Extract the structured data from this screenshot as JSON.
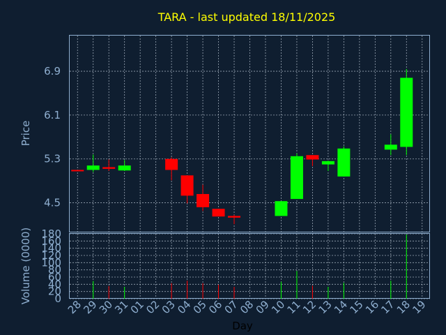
{
  "chart_data": {
    "type": "candlestick",
    "title": "TARA - last updated 18/11/2025",
    "xlabel": "Day",
    "price_panel": {
      "ylabel": "Price",
      "yticks": [
        "4.5",
        "5.3",
        "6.1",
        "6.9"
      ],
      "ylim": [
        3.96,
        7.55
      ],
      "grid": true
    },
    "volume_panel": {
      "ylabel": "Volume (0000)",
      "yticks": [
        "0",
        "20",
        "40",
        "60",
        "80",
        "100",
        "120",
        "140",
        "160",
        "180"
      ],
      "ylim": [
        0,
        180
      ],
      "grid": true
    },
    "x_tick_labels": [
      "28",
      "29",
      "30",
      "31",
      "01",
      "02",
      "03",
      "04",
      "05",
      "06",
      "07",
      "08",
      "09",
      "10",
      "11",
      "12",
      "13",
      "14",
      "15",
      "16",
      "17",
      "18",
      "19"
    ],
    "candles": [
      {
        "day": "28",
        "open": 5.1,
        "high": 5.1,
        "low": 5.1,
        "close": 5.09,
        "volume": 0
      },
      {
        "day": "29",
        "open": 5.1,
        "high": 5.38,
        "low": 5.06,
        "close": 5.18,
        "volume": 49
      },
      {
        "day": "30",
        "open": 5.15,
        "high": 5.29,
        "low": 5.08,
        "close": 5.12,
        "volume": 35
      },
      {
        "day": "31",
        "open": 5.09,
        "high": 5.28,
        "low": 5.08,
        "close": 5.18,
        "volume": 33
      },
      {
        "day": "03",
        "open": 5.3,
        "high": 5.33,
        "low": 4.91,
        "close": 5.1,
        "volume": 43
      },
      {
        "day": "04",
        "open": 5.0,
        "high": 5.0,
        "low": 4.49,
        "close": 4.63,
        "volume": 50
      },
      {
        "day": "05",
        "open": 4.66,
        "high": 4.83,
        "low": 4.35,
        "close": 4.42,
        "volume": 43
      },
      {
        "day": "06",
        "open": 4.39,
        "high": 4.39,
        "low": 4.27,
        "close": 4.25,
        "volume": 39
      },
      {
        "day": "07",
        "open": 4.26,
        "high": 4.28,
        "low": 4.11,
        "close": 4.23,
        "volume": 33
      },
      {
        "day": "10",
        "open": 4.26,
        "high": 4.53,
        "low": 4.26,
        "close": 4.53,
        "volume": 47
      },
      {
        "day": "11",
        "open": 4.57,
        "high": 5.4,
        "low": 4.57,
        "close": 5.35,
        "volume": 77
      },
      {
        "day": "12",
        "open": 5.37,
        "high": 5.37,
        "low": 5.17,
        "close": 5.29,
        "volume": 36
      },
      {
        "day": "13",
        "open": 5.2,
        "high": 5.27,
        "low": 5.08,
        "close": 5.26,
        "volume": 33
      },
      {
        "day": "14",
        "open": 4.98,
        "high": 5.53,
        "low": 4.98,
        "close": 5.49,
        "volume": 44
      },
      {
        "day": "17",
        "open": 5.47,
        "high": 5.75,
        "low": 5.37,
        "close": 5.56,
        "volume": 50
      },
      {
        "day": "18",
        "open": 5.52,
        "high": 6.94,
        "low": 5.37,
        "close": 6.78,
        "volume": 178
      }
    ]
  },
  "colors": {
    "background": "#0f1e30",
    "up": "#00ff00",
    "down": "#ff0000",
    "grid": "#c8d4e0",
    "frame": "#8fafd0",
    "title": "#ffff00"
  }
}
